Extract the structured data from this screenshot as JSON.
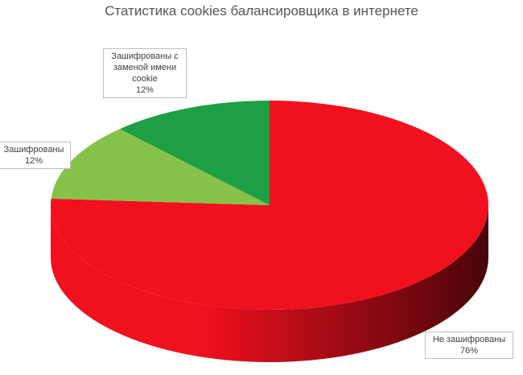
{
  "chart_data": {
    "type": "pie",
    "title": "Статистика cookies балансировщика в интернете",
    "categories": [
      "Не зашифрованы",
      "Зашифрованы",
      "Зашифрованы с заменой имени cookie"
    ],
    "values": [
      76,
      12,
      12
    ],
    "value_labels": [
      "76%",
      "12%",
      "12%"
    ],
    "colors": [
      "#f0101e",
      "#86c24a",
      "#1f9f45"
    ]
  }
}
